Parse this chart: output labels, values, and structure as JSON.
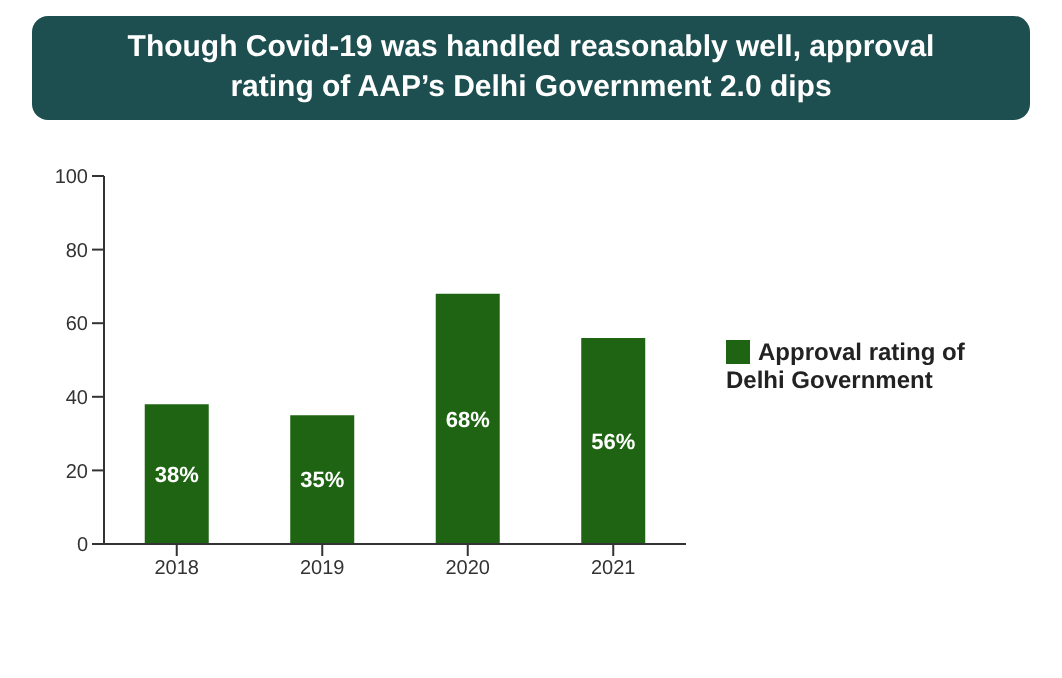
{
  "chart_data": {
    "type": "bar",
    "title": "Though Covid-19 was handled reasonably well, approval rating of AAP’s Delhi Government 2.0 dips",
    "categories": [
      "2018",
      "2019",
      "2020",
      "2021"
    ],
    "series": [
      {
        "name": "Approval rating of Delhi Government",
        "color": "#1f6412",
        "values": [
          38,
          35,
          68,
          56
        ],
        "value_labels": [
          "38%",
          "35%",
          "68%",
          "56%"
        ]
      }
    ],
    "ylim": [
      0,
      100
    ],
    "yticks": [
      0,
      20,
      40,
      60,
      80,
      100
    ],
    "grid": false,
    "legend": "right"
  }
}
